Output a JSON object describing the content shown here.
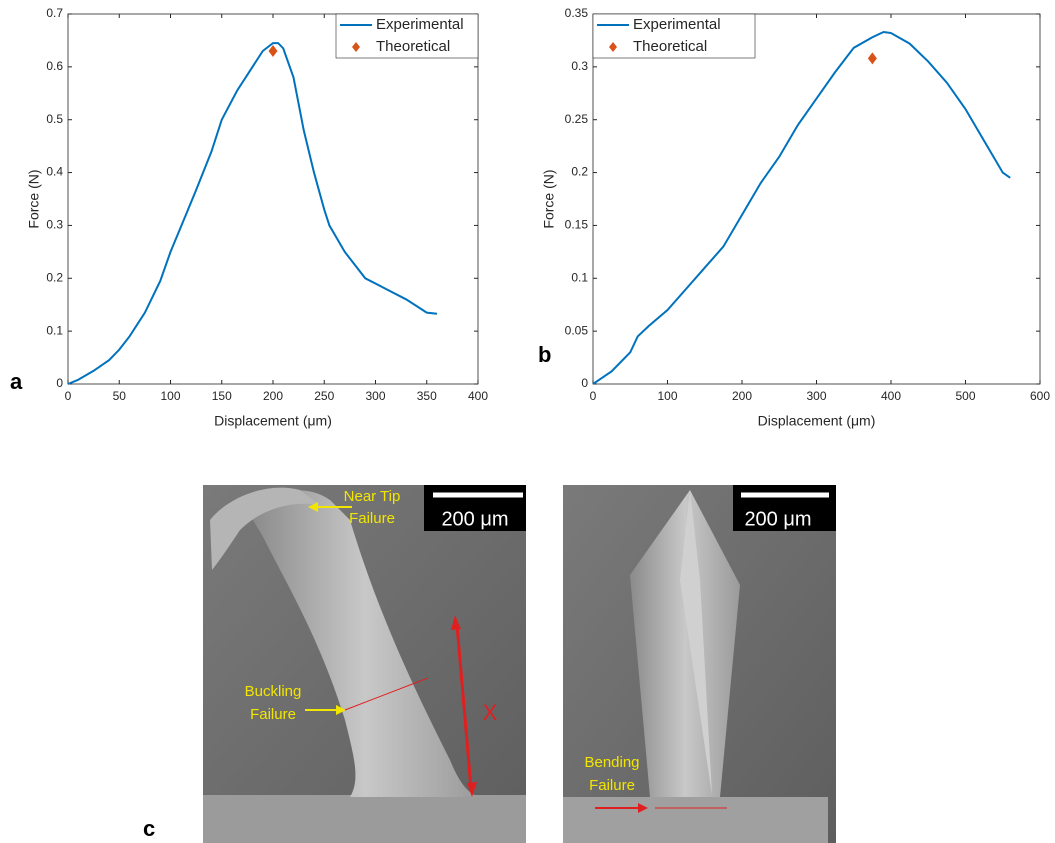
{
  "chart_data": [
    {
      "type": "line",
      "xlabel": "Displacement (μm)",
      "ylabel": "Force (N)",
      "legend": "upper right",
      "xlim": [
        0,
        400
      ],
      "xticks": [
        0,
        50,
        100,
        150,
        200,
        250,
        300,
        350,
        400
      ],
      "ylim": [
        0,
        0.7
      ],
      "yticks": [
        0,
        0.1,
        0.2,
        0.3,
        0.4,
        0.5,
        0.6,
        0.7
      ],
      "series": [
        {
          "name": "Experimental",
          "color": "#0072bd",
          "x": [
            0,
            10,
            25,
            40,
            50,
            60,
            75,
            90,
            100,
            115,
            125,
            140,
            150,
            165,
            175,
            190,
            200,
            205,
            210,
            220,
            230,
            240,
            250,
            255,
            270,
            290,
            310,
            330,
            350,
            360
          ],
          "values": [
            0,
            0.008,
            0.025,
            0.045,
            0.065,
            0.09,
            0.135,
            0.195,
            0.25,
            0.32,
            0.367,
            0.44,
            0.5,
            0.555,
            0.585,
            0.63,
            0.645,
            0.645,
            0.635,
            0.58,
            0.48,
            0.4,
            0.33,
            0.3,
            0.25,
            0.2,
            0.18,
            0.16,
            0.135,
            0.133
          ]
        },
        {
          "name": "Theoretical",
          "color": "#d95319",
          "marker": "diamond",
          "x": [
            200
          ],
          "values": [
            0.63
          ]
        }
      ]
    },
    {
      "type": "line",
      "xlabel": "Displacement (μm)",
      "ylabel": "Force (N)",
      "legend": "upper left",
      "xlim": [
        0,
        600
      ],
      "xticks": [
        0,
        100,
        200,
        300,
        400,
        500,
        600
      ],
      "ylim": [
        0,
        0.35
      ],
      "yticks": [
        0,
        0.05,
        0.1,
        0.15,
        0.2,
        0.25,
        0.3,
        0.35
      ],
      "series": [
        {
          "name": "Experimental",
          "color": "#0072bd",
          "x": [
            0,
            25,
            50,
            60,
            75,
            100,
            125,
            150,
            175,
            200,
            225,
            250,
            275,
            300,
            325,
            350,
            375,
            390,
            400,
            425,
            450,
            475,
            500,
            525,
            550,
            560
          ],
          "values": [
            0,
            0.012,
            0.03,
            0.045,
            0.055,
            0.07,
            0.09,
            0.11,
            0.13,
            0.16,
            0.19,
            0.215,
            0.245,
            0.27,
            0.295,
            0.318,
            0.328,
            0.333,
            0.332,
            0.322,
            0.305,
            0.285,
            0.26,
            0.23,
            0.2,
            0.195
          ]
        },
        {
          "name": "Theoretical",
          "color": "#d95319",
          "marker": "diamond",
          "x": [
            375
          ],
          "values": [
            0.308
          ]
        }
      ]
    }
  ],
  "panel_labels": [
    "a",
    "b",
    "c"
  ],
  "images": [
    {
      "scale_bar": "200 μm",
      "tip_label": [
        "Near Tip",
        "Failure"
      ],
      "failure_label": [
        "Buckling",
        "Failure"
      ],
      "length_label": "X"
    },
    {
      "scale_bar": "200 μm",
      "failure_label": [
        "Bending",
        "Failure"
      ]
    }
  ]
}
